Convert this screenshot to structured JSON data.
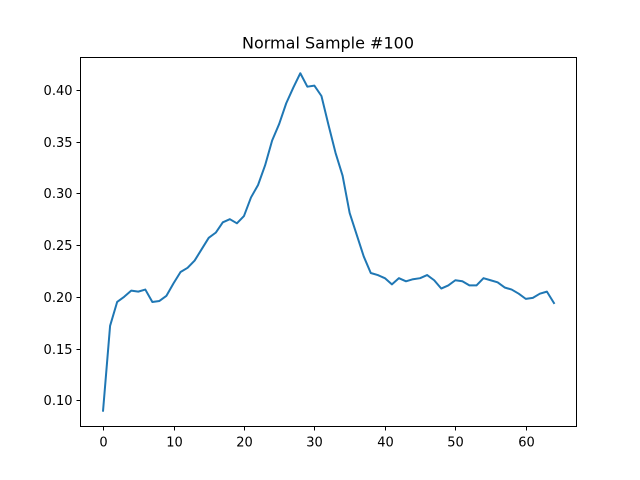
{
  "chart_data": {
    "type": "line",
    "title": "Normal Sample #100",
    "xlabel": "",
    "ylabel": "",
    "xlim": [
      -3.2,
      67.2
    ],
    "ylim": [
      0.0747,
      0.4312
    ],
    "x_ticks": [
      0,
      10,
      20,
      30,
      40,
      50,
      60
    ],
    "x_tick_labels": [
      "0",
      "10",
      "20",
      "30",
      "40",
      "50",
      "60"
    ],
    "y_ticks": [
      0.1,
      0.15,
      0.2,
      0.25,
      0.3,
      0.35,
      0.4
    ],
    "y_tick_labels": [
      "0.10",
      "0.15",
      "0.20",
      "0.25",
      "0.30",
      "0.35",
      "0.40"
    ],
    "grid": false,
    "legend": "none",
    "line_color": "#1f77b4",
    "series": [
      {
        "x": [
          0,
          1,
          2,
          3,
          4,
          5,
          6,
          7,
          8,
          9,
          10,
          11,
          12,
          13,
          14,
          15,
          16,
          17,
          18,
          19,
          20,
          21,
          22,
          23,
          24,
          25,
          26,
          27,
          28,
          29,
          30,
          31,
          32,
          33,
          34,
          35,
          36,
          37,
          38,
          39,
          40,
          41,
          42,
          43,
          44,
          45,
          46,
          47,
          48,
          49,
          50,
          51,
          52,
          53,
          54,
          55,
          56,
          57,
          58,
          59,
          60,
          61,
          62,
          63,
          64
        ],
        "values": [
          0.09,
          0.172,
          0.195,
          0.2,
          0.206,
          0.205,
          0.207,
          0.195,
          0.196,
          0.201,
          0.213,
          0.224,
          0.228,
          0.235,
          0.246,
          0.257,
          0.262,
          0.272,
          0.275,
          0.271,
          0.278,
          0.296,
          0.308,
          0.327,
          0.351,
          0.367,
          0.387,
          0.402,
          0.416,
          0.403,
          0.404,
          0.394,
          0.366,
          0.339,
          0.317,
          0.281,
          0.26,
          0.239,
          0.223,
          0.221,
          0.218,
          0.212,
          0.218,
          0.215,
          0.217,
          0.218,
          0.221,
          0.216,
          0.208,
          0.211,
          0.216,
          0.215,
          0.211,
          0.211,
          0.218,
          0.216,
          0.214,
          0.209,
          0.207,
          0.203,
          0.198,
          0.199,
          0.203,
          0.205,
          0.194
        ]
      }
    ]
  }
}
